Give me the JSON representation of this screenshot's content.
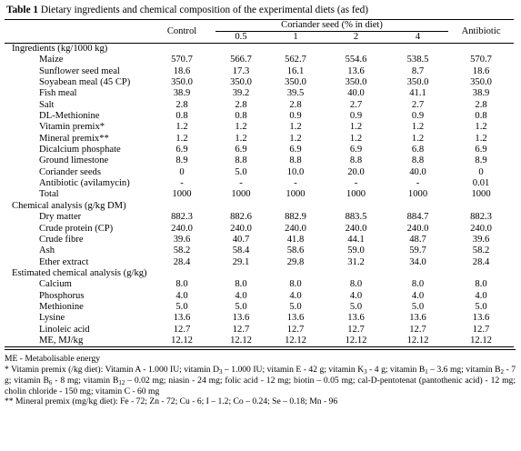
{
  "caption": {
    "label": "Table 1",
    "text": " Dietary ingredients and chemical composition of the experimental diets (as fed)"
  },
  "header": {
    "control": "Control",
    "group": "Coriander seed (% in diet)",
    "levels": [
      "0.5",
      "1",
      "2",
      "4"
    ],
    "antibiotic": "Antibiotic"
  },
  "sections": [
    {
      "title": "Ingredients (kg/1000 kg)",
      "rows": [
        {
          "label": "Maize",
          "values": [
            "570.7",
            "566.7",
            "562.7",
            "554.6",
            "538.5",
            "570.7"
          ]
        },
        {
          "label": "Sunflower seed meal",
          "values": [
            "18.6",
            "17.3",
            "16.1",
            "13.6",
            "8.7",
            "18.6"
          ]
        },
        {
          "label": "Soyabean meal (45 CP)",
          "values": [
            "350.0",
            "350.0",
            "350.0",
            "350.0",
            "350.0",
            "350.0"
          ]
        },
        {
          "label": "Fish meal",
          "values": [
            "38.9",
            "39.2",
            "39.5",
            "40.0",
            "41.1",
            "38.9"
          ]
        },
        {
          "label": "Salt",
          "values": [
            "2.8",
            "2.8",
            "2.8",
            "2.7",
            "2.7",
            "2.8"
          ]
        },
        {
          "label": "DL-Methionine",
          "values": [
            "0.8",
            "0.8",
            "0.9",
            "0.9",
            "0.9",
            "0.8"
          ]
        },
        {
          "label": "Vitamin premix*",
          "values": [
            "1.2",
            "1.2",
            "1.2",
            "1.2",
            "1.2",
            "1.2"
          ]
        },
        {
          "label": "Mineral premix**",
          "values": [
            "1.2",
            "1.2",
            "1.2",
            "1.2",
            "1.2",
            "1.2"
          ]
        },
        {
          "label": "Dicalcium phosphate",
          "values": [
            "6.9",
            "6.9",
            "6.9",
            "6.9",
            "6.8",
            "6.9"
          ]
        },
        {
          "label": "Ground limestone",
          "values": [
            "8.9",
            "8.8",
            "8.8",
            "8.8",
            "8.8",
            "8.9"
          ]
        },
        {
          "label": "Coriander seeds",
          "values": [
            "0",
            "5.0",
            "10.0",
            "20.0",
            "40.0",
            "0"
          ]
        },
        {
          "label": "Antibiotic (avilamycin)",
          "values": [
            "-",
            "-",
            "-",
            "-",
            "-",
            "0.01"
          ]
        },
        {
          "label": "Total",
          "values": [
            "1000",
            "1000",
            "1000",
            "1000",
            "1000",
            "1000"
          ]
        }
      ]
    },
    {
      "title": "Chemical analysis (g/kg DM)",
      "rows": [
        {
          "label": "Dry matter",
          "values": [
            "882.3",
            "882.6",
            "882.9",
            "883.5",
            "884.7",
            "882.3"
          ]
        },
        {
          "label": "Crude protein (CP)",
          "values": [
            "240.0",
            "240.0",
            "240.0",
            "240.0",
            "240.0",
            "240.0"
          ]
        },
        {
          "label": "Crude fibre",
          "values": [
            "39.6",
            "40.7",
            "41.8",
            "44.1",
            "48.7",
            "39.6"
          ]
        },
        {
          "label": "Ash",
          "values": [
            "58.2",
            "58.4",
            "58.6",
            "59.0",
            "59.7",
            "58.2"
          ]
        },
        {
          "label": "Ether extract",
          "values": [
            "28.4",
            "29.1",
            "29.8",
            "31.2",
            "34.0",
            "28.4"
          ]
        }
      ]
    },
    {
      "title": "Estimated chemical analysis (g/kg)",
      "rows": [
        {
          "label": "Calcium",
          "values": [
            "8.0",
            "8.0",
            "8.0",
            "8.0",
            "8.0",
            "8.0"
          ]
        },
        {
          "label": "Phosphorus",
          "values": [
            "4.0",
            "4.0",
            "4.0",
            "4.0",
            "4.0",
            "4.0"
          ]
        },
        {
          "label": "Methionine",
          "values": [
            "5.0",
            "5.0",
            "5.0",
            "5.0",
            "5.0",
            "5.0"
          ]
        },
        {
          "label": "Lysine",
          "values": [
            "13.6",
            "13.6",
            "13.6",
            "13.6",
            "13.6",
            "13.6"
          ]
        },
        {
          "label": "Linoleic acid",
          "values": [
            "12.7",
            "12.7",
            "12.7",
            "12.7",
            "12.7",
            "12.7"
          ]
        },
        {
          "label": "ME, MJ/kg",
          "values": [
            "12.12",
            "12.12",
            "12.12",
            "12.12",
            "12.12",
            "12.12"
          ]
        }
      ]
    }
  ],
  "footnotes": {
    "me": "ME - Metabolisable energy",
    "vitamin": [
      {
        "t": "* Vitamin premix (/kg diet): Vitamin A - 1.000 IU; vitamin D"
      },
      {
        "sub": "3"
      },
      {
        "t": " – 1.000 IU; vitamin E - 42 g; vitamin K"
      },
      {
        "sub": "3"
      },
      {
        "t": " - 4 g; vitamin B"
      },
      {
        "sub": "1"
      },
      {
        "t": " – 3.6 mg; vitamin B"
      },
      {
        "sub": "2"
      },
      {
        "t": " - 7 g; vitamin B"
      },
      {
        "sub": "6"
      },
      {
        "t": " - 8 mg; vitamin B"
      },
      {
        "sub": "12"
      },
      {
        "t": " – 0.02 mg; niasin - 24 mg; folic acid - 12 mg; biotin – 0.05 mg; cal-D-pentotenat (pantothenic acid) - 12 mg; cholin chloride - 150 mg; vitamin C - 60 mg"
      }
    ],
    "mineral": "** Mineral premix (mg/kg diet): Fe - 72; Zn - 72; Cu - 6; I – 1.2; Co – 0.24; Se – 0.18; Mn - 96"
  }
}
